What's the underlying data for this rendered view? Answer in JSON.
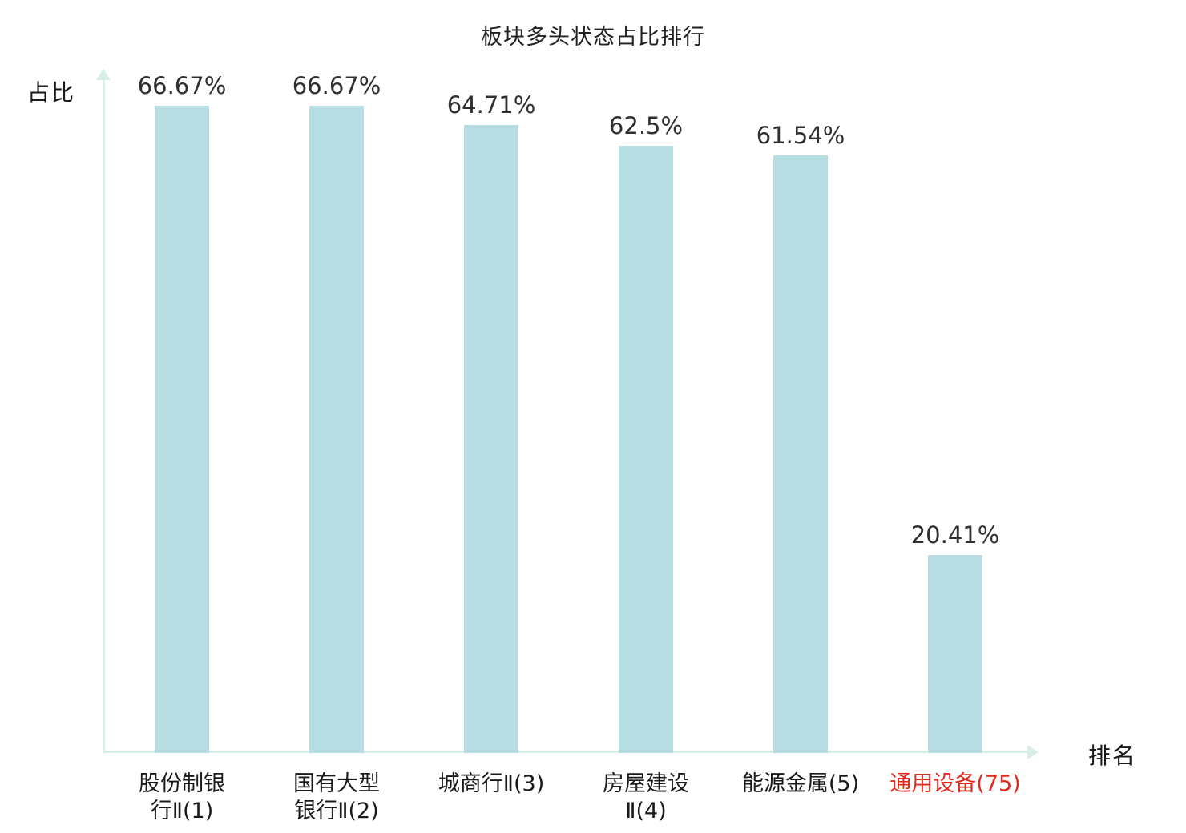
{
  "chart_data": {
    "type": "bar",
    "title": "板块多头状态占比排行",
    "xlabel": "排名",
    "ylabel": "占比",
    "categories": [
      "股份制银\n行Ⅱ(1)",
      "国有大型\n银行Ⅱ(2)",
      "城商行Ⅱ(3)",
      "房屋建设\nⅡ(4)",
      "能源金属(5)",
      "通用设备(75)"
    ],
    "values": [
      66.67,
      66.67,
      64.71,
      62.5,
      61.54,
      20.41
    ],
    "value_labels": [
      "66.67%",
      "66.67%",
      "64.71%",
      "62.5%",
      "61.54%",
      "20.41%"
    ],
    "ylim": [
      0,
      70
    ],
    "grid": false,
    "legend": "none",
    "highlight_index": 5,
    "colors": {
      "bar": "#b5dde2",
      "axis": "#d9eee7",
      "text": "#1a1a1a",
      "value_text": "#2f2f2f",
      "highlight": "#e22a1c"
    }
  }
}
